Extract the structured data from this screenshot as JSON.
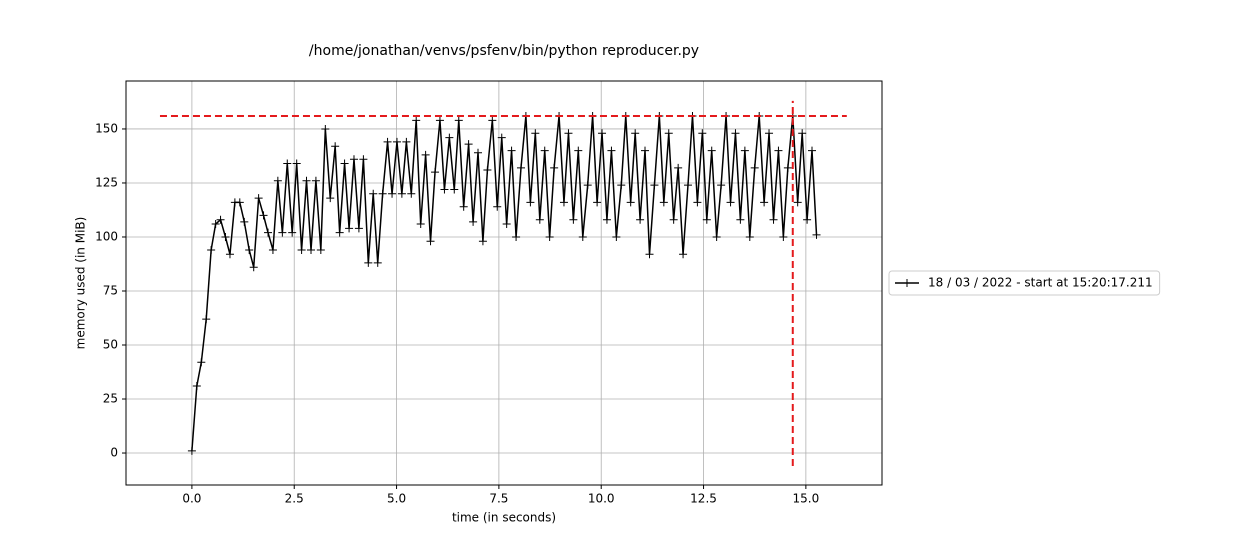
{
  "chart_data": {
    "type": "line",
    "title": "/home/jonathan/venvs/psfenv/bin/python reproducer.py",
    "x_label": "time (in seconds)",
    "y_label": "memory used (in MiB)",
    "xlim": [
      -1.61,
      16.86
    ],
    "ylim": [
      -14.8,
      172.2
    ],
    "xticks": [
      {
        "value": 0,
        "label": "0.0"
      },
      2.5,
      {
        "value": 5,
        "label": "5.0"
      },
      7.5,
      {
        "value": 10,
        "label": "10.0"
      },
      12.5,
      {
        "value": 15,
        "label": "15.0"
      }
    ],
    "yticks": [
      0,
      25,
      50,
      75,
      100,
      125,
      150
    ],
    "grid": true,
    "legend": "outside-right",
    "series": [
      {
        "name": "18 / 03 / 2022 - start at 15:20:17.211",
        "color": "#000000",
        "marker": "+",
        "x": [
          0,
          0.12,
          0.23,
          0.35,
          0.47,
          0.58,
          0.7,
          0.82,
          0.93,
          1.05,
          1.17,
          1.28,
          1.4,
          1.51,
          1.63,
          1.75,
          1.86,
          1.98,
          2.1,
          2.21,
          2.33,
          2.45,
          2.56,
          2.68,
          2.8,
          2.91,
          3.03,
          3.15,
          3.26,
          3.38,
          3.5,
          3.61,
          3.73,
          3.84,
          3.96,
          4.08,
          4.19,
          4.31,
          4.43,
          4.54,
          4.66,
          4.78,
          4.89,
          5.01,
          5.13,
          5.24,
          5.36,
          5.48,
          5.59,
          5.71,
          5.83,
          5.94,
          6.06,
          6.17,
          6.29,
          6.41,
          6.52,
          6.64,
          6.76,
          6.87,
          6.99,
          7.11,
          7.22,
          7.34,
          7.46,
          7.57,
          7.69,
          7.81,
          7.92,
          8.04,
          8.16,
          8.27,
          8.39,
          8.5,
          8.62,
          8.74,
          8.85,
          8.97,
          9.09,
          9.2,
          9.32,
          9.44,
          9.55,
          9.67,
          9.79,
          9.9,
          10.02,
          10.14,
          10.25,
          10.37,
          10.49,
          10.6,
          10.72,
          10.83,
          10.95,
          11.07,
          11.18,
          11.3,
          11.42,
          11.53,
          11.65,
          11.77,
          11.88,
          12.0,
          12.12,
          12.23,
          12.35,
          12.47,
          12.58,
          12.7,
          12.82,
          12.93,
          13.05,
          13.16,
          13.28,
          13.4,
          13.51,
          13.63,
          13.75,
          13.86,
          13.98,
          14.1,
          14.21,
          14.33,
          14.45,
          14.56,
          14.68,
          14.8,
          14.91,
          15.03,
          15.15,
          15.26
        ],
        "values": [
          1,
          31,
          42,
          62,
          94,
          106,
          108,
          100,
          92,
          116,
          116,
          107,
          94,
          86,
          118,
          110,
          102,
          94,
          126,
          102,
          134,
          102,
          134,
          94,
          126,
          94,
          126,
          94,
          150,
          118,
          142,
          102,
          134,
          104,
          136,
          104,
          136,
          88,
          120,
          88,
          120,
          144,
          120,
          144,
          120,
          144,
          120,
          154,
          106,
          138,
          98,
          130,
          154,
          122,
          146,
          122,
          154,
          114,
          143,
          107,
          139,
          98,
          131,
          154,
          114,
          146,
          106,
          140,
          100,
          132,
          156,
          116,
          148,
          108,
          140,
          100,
          132,
          156,
          116,
          148,
          108,
          140,
          100,
          124,
          156,
          116,
          148,
          108,
          140,
          100,
          124,
          156,
          116,
          148,
          108,
          140,
          92,
          124,
          156,
          116,
          148,
          108,
          132,
          92,
          124,
          156,
          116,
          148,
          108,
          140,
          100,
          124,
          156,
          116,
          148,
          108,
          140,
          100,
          132,
          156,
          116,
          148,
          108,
          140,
          100,
          132,
          156,
          116,
          148,
          108,
          140,
          101
        ]
      }
    ],
    "reference_lines": [
      {
        "orientation": "horizontal",
        "y": 156,
        "x_range": [
          -0.78,
          16.0
        ],
        "color": "#e41a1c"
      },
      {
        "orientation": "vertical",
        "x": 14.68,
        "y_range": [
          -6,
          163
        ],
        "color": "#e41a1c"
      }
    ]
  }
}
